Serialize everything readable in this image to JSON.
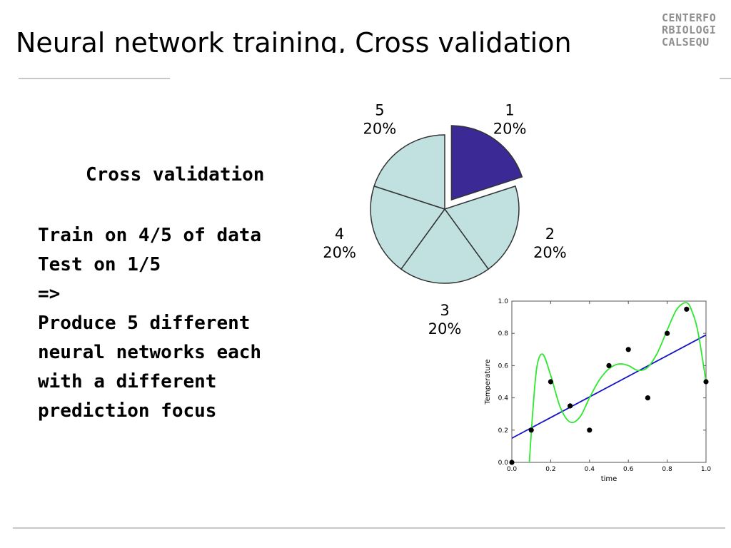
{
  "slide": {
    "title": "Neural network training, Cross validation",
    "logo_lines": [
      "CENTERFO",
      "RBIOLOGI",
      "CALSEQU"
    ],
    "subhead": "Cross validation",
    "body_lines": [
      "Train on 4/5 of data",
      "Test on 1/5",
      "=>",
      "Produce 5 different",
      "neural networks each",
      "with a different",
      "prediction focus"
    ]
  },
  "chart_data": [
    {
      "type": "pie",
      "slices": [
        {
          "label": "1",
          "value": 20,
          "value_label": "20%",
          "exploded": true,
          "color": "#3b2a96"
        },
        {
          "label": "2",
          "value": 20,
          "value_label": "20%",
          "exploded": false,
          "color": "#c1e1e1"
        },
        {
          "label": "3",
          "value": 20,
          "value_label": "20%",
          "exploded": false,
          "color": "#c1e1e1"
        },
        {
          "label": "4",
          "value": 20,
          "value_label": "20%",
          "exploded": false,
          "color": "#c1e1e1"
        },
        {
          "label": "5",
          "value": 20,
          "value_label": "20%",
          "exploded": false,
          "color": "#c1e1e1"
        }
      ]
    },
    {
      "type": "scatter",
      "xlabel": "time",
      "ylabel": "Temperature",
      "xlim": [
        0.0,
        1.0
      ],
      "ylim": [
        0.0,
        1.0
      ],
      "xticks": [
        "0.0",
        "0.2",
        "0.4",
        "0.6",
        "0.8",
        "1.0"
      ],
      "yticks": [
        "0.0",
        "0.2",
        "0.4",
        "0.6",
        "0.8",
        "1.0"
      ],
      "points": {
        "x": [
          0.0,
          0.1,
          0.2,
          0.3,
          0.4,
          0.5,
          0.6,
          0.7,
          0.8,
          0.9,
          1.0
        ],
        "y": [
          0.0,
          0.2,
          0.5,
          0.35,
          0.2,
          0.6,
          0.7,
          0.4,
          0.8,
          0.95,
          0.5
        ],
        "color": "#000000"
      },
      "series": [
        {
          "type": "line",
          "color": "#1414c8",
          "x": [
            0.0,
            1.0
          ],
          "y": [
            0.15,
            0.79
          ]
        },
        {
          "type": "curve",
          "color": "#2ee82e",
          "x": [
            0.09,
            0.11,
            0.13,
            0.16,
            0.2,
            0.25,
            0.3,
            0.35,
            0.4,
            0.45,
            0.5,
            0.55,
            0.6,
            0.65,
            0.7,
            0.75,
            0.8,
            0.85,
            0.9,
            0.93,
            0.96,
            1.0
          ],
          "y": [
            0.0,
            0.35,
            0.6,
            0.67,
            0.54,
            0.34,
            0.25,
            0.28,
            0.4,
            0.51,
            0.58,
            0.61,
            0.6,
            0.57,
            0.59,
            0.68,
            0.82,
            0.95,
            0.99,
            0.93,
            0.8,
            0.5
          ]
        }
      ]
    }
  ]
}
